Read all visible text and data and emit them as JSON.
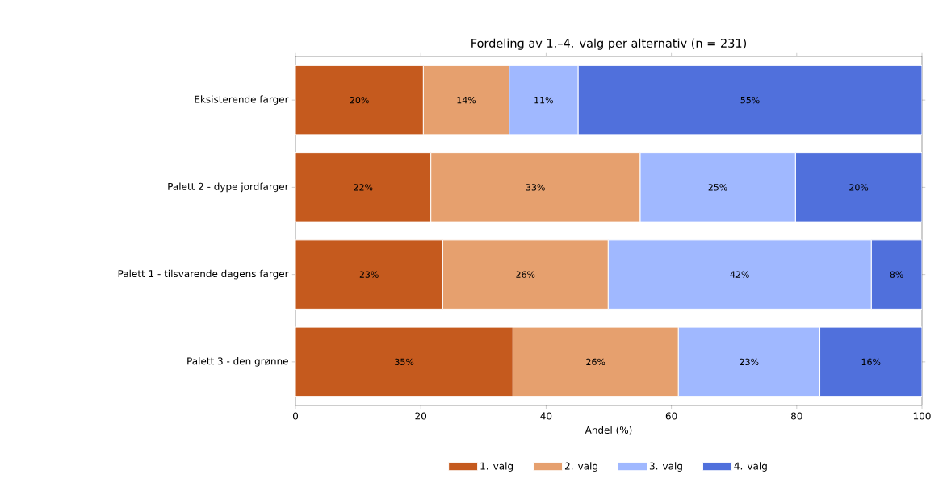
{
  "chart_data": {
    "type": "bar",
    "orientation": "horizontal",
    "stacked": true,
    "title": "Fordeling av 1.–4. valg per alternativ (n = 231)",
    "xlabel": "Andel (%)",
    "categories": [
      "Eksisterende farger",
      "Palett 2 - dype jordfarger",
      "Palett 1 - tilsvarende dagens farger",
      "Palett 3 - den grønne"
    ],
    "series": [
      {
        "name": "1. valg",
        "color": "#c55a1e",
        "values": [
          20.4,
          21.6,
          23.5,
          34.7
        ],
        "value_labels": [
          "20%",
          "22%",
          "23%",
          "35%"
        ]
      },
      {
        "name": "2. valg",
        "color": "#e6a06e",
        "values": [
          13.7,
          33.4,
          26.4,
          26.4
        ],
        "value_labels": [
          "14%",
          "33%",
          "26%",
          "26%"
        ]
      },
      {
        "name": "3. valg",
        "color": "#a0b8ff",
        "values": [
          11.0,
          24.8,
          42.0,
          22.6
        ],
        "value_labels": [
          "11%",
          "25%",
          "42%",
          "23%"
        ]
      },
      {
        "name": "4. valg",
        "color": "#5070dc",
        "values": [
          54.9,
          20.2,
          8.1,
          16.3
        ],
        "value_labels": [
          "55%",
          "20%",
          "8%",
          "16%"
        ]
      }
    ],
    "xlim": [
      0,
      100
    ],
    "xticks": [
      0,
      20,
      40,
      60,
      80,
      100
    ],
    "grid": false,
    "legend": "bottom"
  }
}
